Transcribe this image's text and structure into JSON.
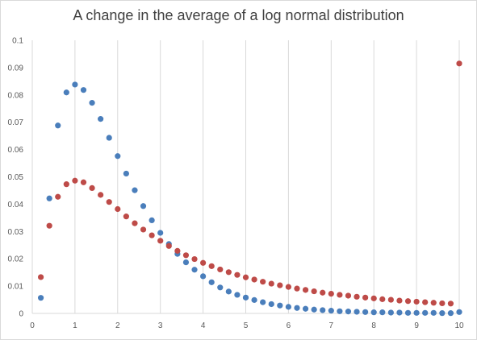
{
  "chart_data": {
    "type": "scatter",
    "title": "A change in the average of a log normal distribution",
    "xlabel": "",
    "ylabel": "",
    "xlim": [
      0,
      10
    ],
    "ylim": [
      0,
      0.1
    ],
    "x_ticks": [
      "0",
      "1",
      "2",
      "3",
      "4",
      "5",
      "6",
      "7",
      "8",
      "9",
      "10"
    ],
    "y_ticks": [
      "0",
      "0.01",
      "0.02",
      "0.03",
      "0.04",
      "0.05",
      "0.06",
      "0.07",
      "0.08",
      "0.09",
      "0.1"
    ],
    "grid": "vertical",
    "legend": "none",
    "series": [
      {
        "color": "#4a7ebb",
        "x": [
          0.2,
          0.4,
          0.6,
          0.8,
          1.0,
          1.2,
          1.4,
          1.6,
          1.8,
          2.0,
          2.2,
          2.4,
          2.6,
          2.8,
          3.0,
          3.2,
          3.4,
          3.6,
          3.8,
          4.0,
          4.2,
          4.4,
          4.6,
          4.8,
          5.0,
          5.2,
          5.4,
          5.6,
          5.8,
          6.0,
          6.2,
          6.4,
          6.6,
          6.8,
          7.0,
          7.2,
          7.4,
          7.6,
          7.8,
          8.0,
          8.2,
          8.4,
          8.6,
          8.8,
          9.0,
          9.2,
          9.4,
          9.6,
          9.8,
          10.0
        ],
        "y": [
          0.0057,
          0.0421,
          0.0688,
          0.0809,
          0.0838,
          0.0818,
          0.0771,
          0.0712,
          0.0643,
          0.0576,
          0.0512,
          0.0451,
          0.0393,
          0.0341,
          0.0295,
          0.0254,
          0.0218,
          0.0187,
          0.016,
          0.0136,
          0.0114,
          0.0095,
          0.008,
          0.0068,
          0.0058,
          0.0049,
          0.0041,
          0.0034,
          0.0029,
          0.0024,
          0.002,
          0.0017,
          0.0014,
          0.0012,
          0.001,
          0.0008,
          0.0007,
          0.0006,
          0.0005,
          0.0004,
          0.0004,
          0.0003,
          0.0003,
          0.0002,
          0.0002,
          0.0002,
          0.0002,
          0.0001,
          0.0001,
          0.0005
        ]
      },
      {
        "color": "#be4b48",
        "x": [
          0.2,
          0.4,
          0.6,
          0.8,
          1.0,
          1.2,
          1.4,
          1.6,
          1.8,
          2.0,
          2.2,
          2.4,
          2.6,
          2.8,
          3.0,
          3.2,
          3.4,
          3.6,
          3.8,
          4.0,
          4.2,
          4.4,
          4.6,
          4.8,
          5.0,
          5.2,
          5.4,
          5.6,
          5.8,
          6.0,
          6.2,
          6.4,
          6.6,
          6.8,
          7.0,
          7.2,
          7.4,
          7.6,
          7.8,
          8.0,
          8.2,
          8.4,
          8.6,
          8.8,
          9.0,
          9.2,
          9.4,
          9.6,
          9.8,
          10.0
        ],
        "y": [
          0.0133,
          0.0321,
          0.0427,
          0.0473,
          0.0486,
          0.048,
          0.0459,
          0.0434,
          0.0408,
          0.0382,
          0.0355,
          0.033,
          0.0307,
          0.0286,
          0.0266,
          0.0247,
          0.0229,
          0.0213,
          0.0199,
          0.0185,
          0.0173,
          0.0161,
          0.0151,
          0.0141,
          0.0132,
          0.0124,
          0.0116,
          0.0109,
          0.0103,
          0.0097,
          0.0091,
          0.0086,
          0.0081,
          0.0076,
          0.0072,
          0.0068,
          0.0065,
          0.0061,
          0.0058,
          0.0055,
          0.0052,
          0.005,
          0.0047,
          0.0045,
          0.0043,
          0.0041,
          0.0039,
          0.0037,
          0.0036,
          0.0915
        ]
      }
    ]
  }
}
